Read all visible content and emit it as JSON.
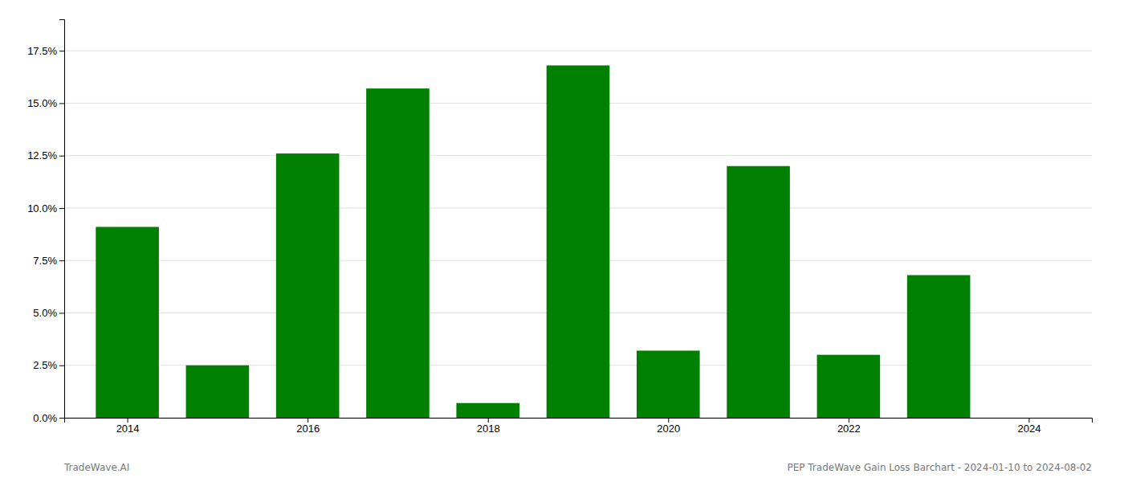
{
  "chart_data": {
    "type": "bar",
    "x": [
      2014,
      2015,
      2016,
      2017,
      2018,
      2019,
      2020,
      2021,
      2022,
      2023,
      2024
    ],
    "values": [
      0.091,
      0.025,
      0.126,
      0.157,
      0.007,
      0.168,
      0.032,
      0.12,
      0.03,
      0.068,
      0.0
    ],
    "color": "#008000",
    "xlim": [
      2013.3,
      2024.7
    ],
    "xticks": [
      2014,
      2016,
      2018,
      2020,
      2022,
      2024
    ],
    "ylim": [
      0,
      0.19
    ],
    "yticks": [
      {
        "value": 0.0,
        "label": "0.0%"
      },
      {
        "value": 0.025,
        "label": "2.5%"
      },
      {
        "value": 0.05,
        "label": "5.0%"
      },
      {
        "value": 0.075,
        "label": "7.5%"
      },
      {
        "value": 0.1,
        "label": "10.0%"
      },
      {
        "value": 0.125,
        "label": "12.5%"
      },
      {
        "value": 0.15,
        "label": "15.0%"
      },
      {
        "value": 0.175,
        "label": "17.5%"
      }
    ],
    "grid": true,
    "annotations": [
      "TradeWave.AI",
      "PEP TradeWave Gain Loss Barchart - 2024-01-10 to 2024-08-02"
    ]
  }
}
